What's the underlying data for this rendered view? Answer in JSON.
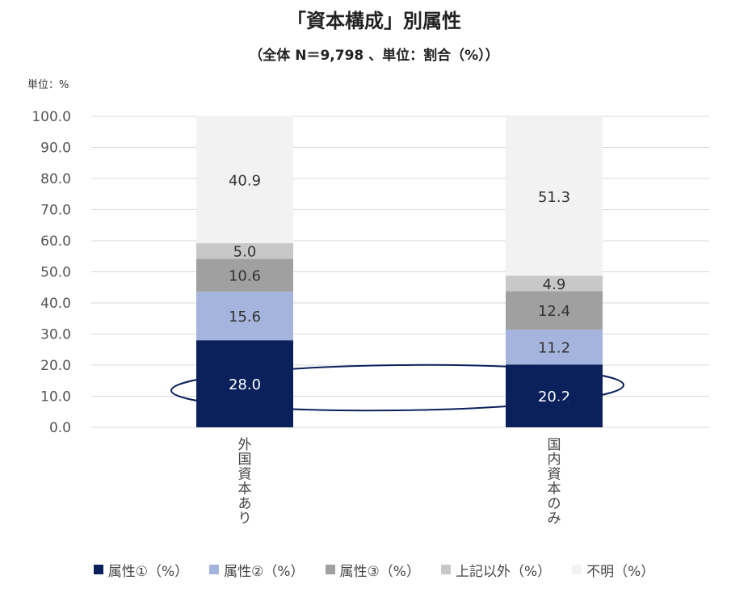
{
  "chart_data": {
    "type": "bar",
    "stacked": true,
    "title": "「資本構成」別属性",
    "subtitle": "（全体 N＝9,798 、単位：割合（%））",
    "unit_label": "単位：%",
    "categories": [
      "外国資本あり",
      "国内資本のみ"
    ],
    "ylim": [
      0,
      100
    ],
    "yticks": [
      "0.0",
      "10.0",
      "20.0",
      "30.0",
      "40.0",
      "50.0",
      "60.0",
      "70.0",
      "80.0",
      "90.0",
      "100.0"
    ],
    "grid": true,
    "legend_position": "bottom",
    "series": [
      {
        "name": "属性①（%）",
        "values": [
          28.0,
          20.2
        ],
        "labels": [
          "28.0",
          "20.2"
        ],
        "color": "#0a215c",
        "label_color": "#ffffff"
      },
      {
        "name": "属性②（%）",
        "values": [
          15.6,
          11.2
        ],
        "labels": [
          "15.6",
          "11.2"
        ],
        "color": "#a5b4dc",
        "label_color": "#333333"
      },
      {
        "name": "属性③（%）",
        "values": [
          10.6,
          12.4
        ],
        "labels": [
          "10.6",
          "12.4"
        ],
        "color": "#a0a0a0",
        "label_color": "#333333"
      },
      {
        "name": "上記以外（%）",
        "values": [
          5.0,
          4.9
        ],
        "labels": [
          "5.0",
          "4.9"
        ],
        "color": "#c8c8c8",
        "label_color": "#333333"
      },
      {
        "name": "不明（%）",
        "values": [
          40.9,
          51.3
        ],
        "labels": [
          "40.9",
          "51.3"
        ],
        "color": "#f2f2f2",
        "label_color": "#333333"
      }
    ],
    "annotation": {
      "shape": "ellipse",
      "color": "#0a215c",
      "encloses_series": "属性①（%）"
    }
  }
}
